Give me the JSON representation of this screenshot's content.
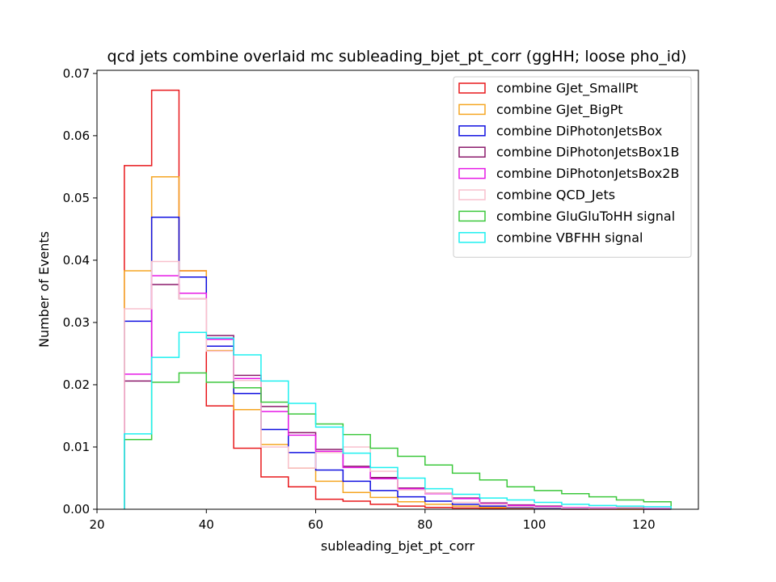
{
  "chart_data": {
    "type": "histogram-step",
    "title": "qcd jets combine overlaid mc subleading_bjet_pt_corr (ggHH; loose pho_id)",
    "xlabel": "subleading_bjet_pt_corr",
    "ylabel": "Number of Events",
    "xlim": [
      20,
      130
    ],
    "ylim": [
      0,
      0.0705
    ],
    "xticks": [
      20,
      40,
      60,
      80,
      100,
      120
    ],
    "yticks": [
      0.0,
      0.01,
      0.02,
      0.03,
      0.04,
      0.05,
      0.06,
      0.07
    ],
    "ytick_labels": [
      "0.00",
      "0.01",
      "0.02",
      "0.03",
      "0.04",
      "0.05",
      "0.06",
      "0.07"
    ],
    "legend_position": "top-right",
    "grid": false,
    "bin_edges": [
      25,
      30,
      35,
      40,
      45,
      50,
      55,
      60,
      65,
      70,
      75,
      80,
      85,
      90,
      95,
      100,
      105,
      110,
      115,
      120,
      125
    ],
    "series": [
      {
        "name": "combine GJet_SmallPt",
        "color": "#e8191c",
        "values": [
          0.0552,
          0.0673,
          0.0383,
          0.0166,
          0.0098,
          0.0052,
          0.0036,
          0.0016,
          0.0013,
          0.0008,
          0.0005,
          0.0003,
          0.0002,
          0.0001,
          0.0001,
          0.0001,
          0.0,
          0.0,
          0.0,
          0.0
        ]
      },
      {
        "name": "combine GJet_BigPt",
        "color": "#f5a623",
        "values": [
          0.0383,
          0.0534,
          0.0383,
          0.0255,
          0.016,
          0.0104,
          0.0066,
          0.0045,
          0.0027,
          0.0019,
          0.0012,
          0.0008,
          0.0005,
          0.0003,
          0.0002,
          0.0001,
          0.0001,
          0.0001,
          0.0,
          0.0
        ]
      },
      {
        "name": "combine DiPhotonJetsBox",
        "color": "#1010e0",
        "values": [
          0.0302,
          0.0469,
          0.0373,
          0.0262,
          0.0186,
          0.0128,
          0.0091,
          0.0063,
          0.0045,
          0.003,
          0.002,
          0.0013,
          0.0008,
          0.0005,
          0.0003,
          0.0002,
          0.0001,
          0.0001,
          0.0001,
          0.0
        ]
      },
      {
        "name": "combine DiPhotonJetsBox1B",
        "color": "#8b1a6b",
        "values": [
          0.0206,
          0.0361,
          0.0338,
          0.0279,
          0.0215,
          0.0165,
          0.0123,
          0.0096,
          0.0069,
          0.0051,
          0.0034,
          0.0026,
          0.0018,
          0.001,
          0.0007,
          0.0005,
          0.0003,
          0.0002,
          0.0002,
          0.0001
        ]
      },
      {
        "name": "combine DiPhotonJetsBox2B",
        "color": "#e619e6",
        "values": [
          0.0217,
          0.0375,
          0.0347,
          0.0273,
          0.021,
          0.0157,
          0.0119,
          0.0093,
          0.0067,
          0.0049,
          0.0033,
          0.0025,
          0.0017,
          0.0009,
          0.0006,
          0.0004,
          0.0003,
          0.0002,
          0.0001,
          0.0001
        ]
      },
      {
        "name": "combine QCD_Jets",
        "color": "#f9c0cd",
        "values": [
          0.0322,
          0.0398,
          0.0338,
          0.0254,
          0.0207,
          0.01,
          0.0066,
          0.0091,
          0.01,
          0.0061,
          0.0031,
          0.0026,
          0.0011,
          0.0008,
          0.0004,
          0.0003,
          0.0002,
          0.0001,
          0.0001,
          0.0
        ]
      },
      {
        "name": "combine GluGluToHH signal",
        "color": "#3cc83c",
        "values": [
          0.0112,
          0.0204,
          0.0219,
          0.0204,
          0.0195,
          0.0172,
          0.0153,
          0.0137,
          0.012,
          0.0098,
          0.0085,
          0.0071,
          0.0058,
          0.0047,
          0.0036,
          0.003,
          0.0025,
          0.002,
          0.0015,
          0.0012
        ]
      },
      {
        "name": "combine VBFHH signal",
        "color": "#1ef0f0",
        "values": [
          0.0121,
          0.0244,
          0.0284,
          0.0275,
          0.0248,
          0.0206,
          0.017,
          0.0132,
          0.009,
          0.0067,
          0.005,
          0.0033,
          0.0024,
          0.0018,
          0.0015,
          0.0011,
          0.0008,
          0.0006,
          0.0005,
          0.0004
        ]
      }
    ]
  }
}
